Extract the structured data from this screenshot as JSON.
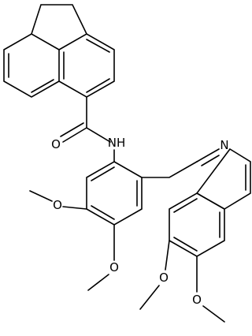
{
  "atom_labels": [
    "O",
    "NH",
    "N",
    "O",
    "O",
    "O",
    "O"
  ]
}
